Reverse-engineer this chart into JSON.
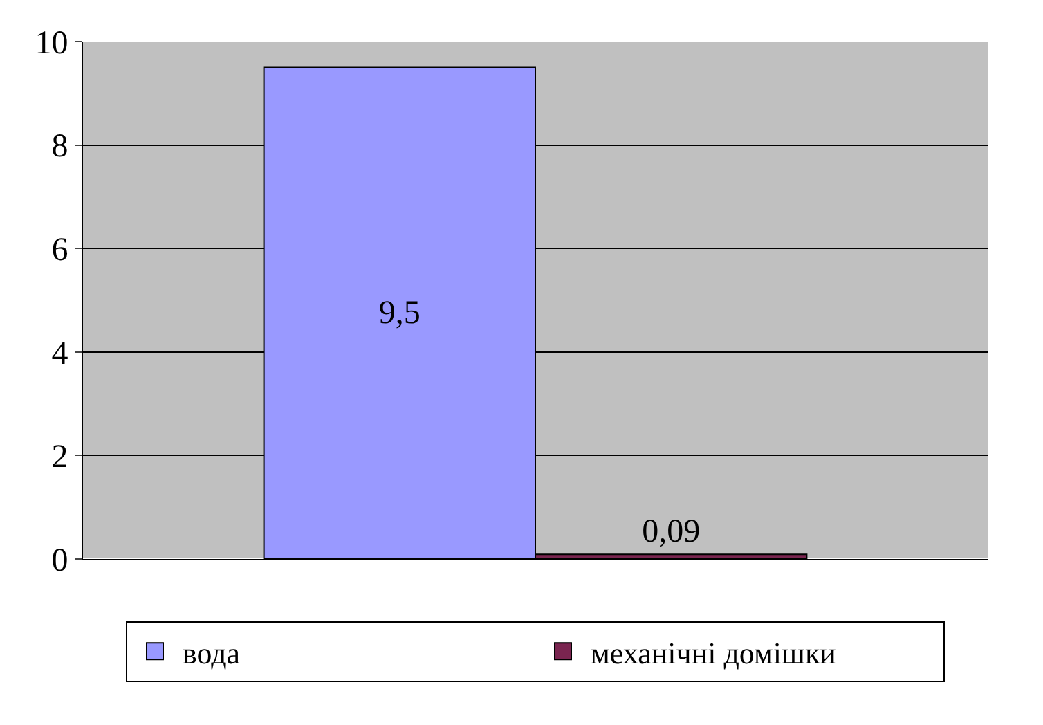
{
  "chart_data": {
    "type": "bar",
    "categories": [
      null
    ],
    "series": [
      {
        "name": "вода",
        "color": "#9999ff",
        "values": [
          9.5
        ],
        "value_labels": [
          "9,5"
        ]
      },
      {
        "name": "механічні домішки",
        "color": "#7a2550",
        "values": [
          0.09
        ],
        "value_labels": [
          "0,09"
        ]
      }
    ],
    "ylim": [
      0,
      10
    ],
    "yticks": [
      0,
      2,
      4,
      6,
      8,
      10
    ],
    "grid": "y",
    "legend": "bottom"
  }
}
